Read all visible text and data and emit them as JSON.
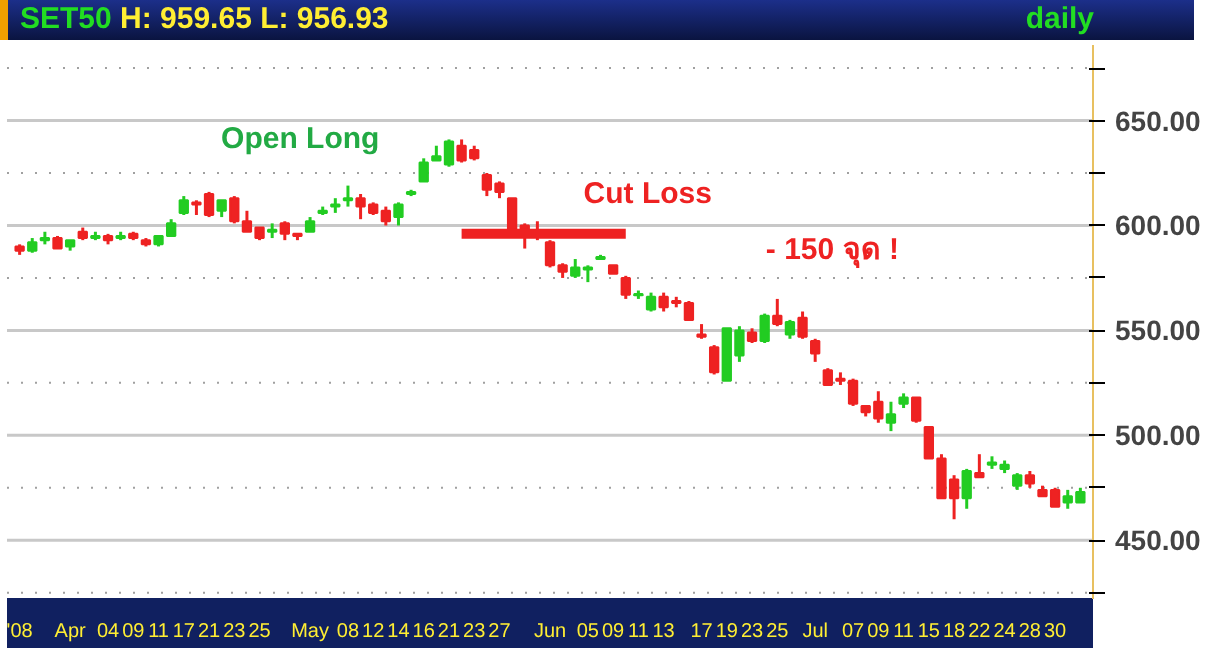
{
  "chart_data": {
    "type": "candlestick",
    "title": "SET50 H: 959.65 L: 956.93",
    "subtitle": "daily",
    "categories": [
      "'08",
      null,
      null,
      null,
      "Apr",
      null,
      null,
      "04",
      null,
      "09",
      null,
      "11",
      null,
      "17",
      null,
      "21",
      null,
      "23",
      null,
      "25",
      null,
      null,
      null,
      "May",
      null,
      null,
      "08",
      null,
      "12",
      null,
      "14",
      null,
      "16",
      null,
      "21",
      null,
      "23",
      null,
      "27",
      null,
      null,
      null,
      "Jun",
      null,
      null,
      "05",
      null,
      "09",
      null,
      "11",
      null,
      "13",
      null,
      null,
      "17",
      null,
      "19",
      null,
      "23",
      null,
      "25",
      null,
      null,
      "Jul",
      null,
      null,
      "07",
      null,
      "09",
      null,
      "11",
      null,
      "15",
      null,
      "18",
      null,
      "22",
      null,
      "24",
      null,
      "28",
      null,
      "30",
      null,
      null
    ],
    "ohlc": [
      [
        590,
        591,
        586,
        588
      ],
      [
        588,
        594,
        587,
        592
      ],
      [
        593,
        597,
        591,
        594
      ],
      [
        594,
        595,
        589,
        589
      ],
      [
        590,
        593,
        588,
        593
      ],
      [
        597,
        599,
        593,
        594
      ],
      [
        594,
        597,
        593,
        595
      ],
      [
        595,
        596,
        591,
        593
      ],
      [
        594,
        597,
        593,
        595
      ],
      [
        596,
        597,
        593,
        594
      ],
      [
        593,
        594,
        590,
        591
      ],
      [
        591,
        595,
        590,
        595
      ],
      [
        595,
        603,
        595,
        601
      ],
      [
        606,
        614,
        605,
        612
      ],
      [
        611,
        612,
        605,
        610
      ],
      [
        615,
        616,
        604,
        605
      ],
      [
        607,
        612,
        604,
        612
      ],
      [
        613,
        614,
        601,
        602
      ],
      [
        602,
        607,
        597,
        597
      ],
      [
        599,
        599,
        593,
        594
      ],
      [
        597,
        601,
        594,
        598
      ],
      [
        601,
        602,
        593,
        596
      ],
      [
        596,
        596,
        593,
        595
      ],
      [
        597,
        604,
        597,
        602
      ],
      [
        606,
        609,
        605,
        607
      ],
      [
        609,
        613,
        606,
        610
      ],
      [
        612,
        619,
        609,
        613
      ],
      [
        613,
        615,
        603,
        609
      ],
      [
        610,
        611,
        605,
        606
      ],
      [
        607,
        609,
        600,
        602
      ],
      [
        604,
        611,
        600,
        610
      ],
      [
        615,
        617,
        614,
        616
      ],
      [
        621,
        632,
        621,
        630
      ],
      [
        631,
        638,
        631,
        633
      ],
      [
        629,
        641,
        628,
        640
      ],
      [
        638,
        641,
        630,
        631
      ],
      [
        636,
        638,
        631,
        632
      ],
      [
        624,
        625,
        614,
        617
      ],
      [
        620,
        621,
        613,
        616
      ],
      [
        613,
        613,
        596,
        596
      ],
      [
        600,
        601,
        589,
        597
      ],
      [
        597,
        602,
        593,
        596
      ],
      [
        592,
        593,
        580,
        581
      ],
      [
        581,
        582,
        575,
        578
      ],
      [
        576,
        584,
        575,
        580
      ],
      [
        579,
        581,
        573,
        580
      ],
      [
        584,
        586,
        584,
        585
      ],
      [
        581,
        581,
        577,
        577
      ],
      [
        575,
        576,
        565,
        567
      ],
      [
        567,
        569,
        565,
        567
      ],
      [
        560,
        568,
        559,
        566
      ],
      [
        566,
        568,
        559,
        561
      ],
      [
        564,
        566,
        561,
        563
      ],
      [
        563,
        564,
        555,
        555
      ],
      [
        548,
        553,
        546,
        547
      ],
      [
        542,
        543,
        529,
        530
      ],
      [
        526,
        551,
        526,
        551
      ],
      [
        538,
        552,
        535,
        550
      ],
      [
        549,
        551,
        544,
        545
      ],
      [
        545,
        558,
        544,
        557
      ],
      [
        557,
        565,
        552,
        553
      ],
      [
        548,
        555,
        546,
        554
      ],
      [
        556,
        559,
        546,
        547
      ],
      [
        545,
        546,
        535,
        539
      ],
      [
        531,
        532,
        524,
        524
      ],
      [
        527,
        530,
        524,
        526
      ],
      [
        526,
        527,
        514,
        515
      ],
      [
        514,
        514,
        509,
        511
      ],
      [
        516,
        521,
        506,
        508
      ],
      [
        506,
        516,
        502,
        510
      ],
      [
        515,
        520,
        513,
        518
      ],
      [
        518,
        518,
        506,
        507
      ],
      [
        504,
        504,
        489,
        489
      ],
      [
        489,
        491,
        470,
        470
      ],
      [
        479,
        481,
        460,
        470
      ],
      [
        470,
        484,
        465,
        483
      ],
      [
        482,
        491,
        480,
        480
      ],
      [
        486,
        490,
        484,
        487
      ],
      [
        484,
        488,
        482,
        486
      ],
      [
        476,
        482,
        474,
        481
      ],
      [
        481,
        483,
        475,
        477
      ],
      [
        474,
        476,
        471,
        471
      ],
      [
        474,
        475,
        466,
        466
      ],
      [
        468,
        474,
        465,
        471
      ],
      [
        468,
        475,
        468,
        473
      ]
    ],
    "series": [
      {
        "type": "line",
        "color": "#ee2222",
        "values": [
          null,
          null,
          null,
          null,
          null,
          null,
          null,
          null,
          null,
          null,
          null,
          null,
          null,
          null,
          null,
          null,
          null,
          null,
          null,
          null,
          null,
          null,
          null,
          null,
          null,
          null,
          null,
          null,
          null,
          null,
          null,
          null,
          null,
          null,
          null,
          596,
          596,
          596,
          596,
          596,
          596,
          596,
          596,
          596,
          596,
          596,
          596,
          596,
          596,
          null,
          null,
          null,
          null,
          null,
          null,
          null,
          null,
          null,
          null,
          null,
          null,
          null,
          null,
          null,
          null,
          null,
          null,
          null,
          null,
          null,
          null,
          null,
          null,
          null,
          null,
          null,
          null,
          null,
          null,
          null,
          null,
          null,
          null,
          null,
          null
        ]
      }
    ],
    "annotations": [
      "Open Long",
      "Cut Loss",
      "- 150 จุด !"
    ],
    "ylim": [
      422,
      686
    ],
    "yticks": [
      {
        "value": 425,
        "label": null
      },
      {
        "value": 450,
        "label": "450.00"
      },
      {
        "value": 475,
        "label": null
      },
      {
        "value": 500,
        "label": "500.00"
      },
      {
        "value": 525,
        "label": null
      },
      {
        "value": 550,
        "label": "550.00"
      },
      {
        "value": 575,
        "label": null
      },
      {
        "value": 600,
        "label": "600.00"
      },
      {
        "value": 625,
        "label": null
      },
      {
        "value": 650,
        "label": "650.00"
      },
      {
        "value": 675,
        "label": null
      }
    ],
    "grid": "y"
  }
}
